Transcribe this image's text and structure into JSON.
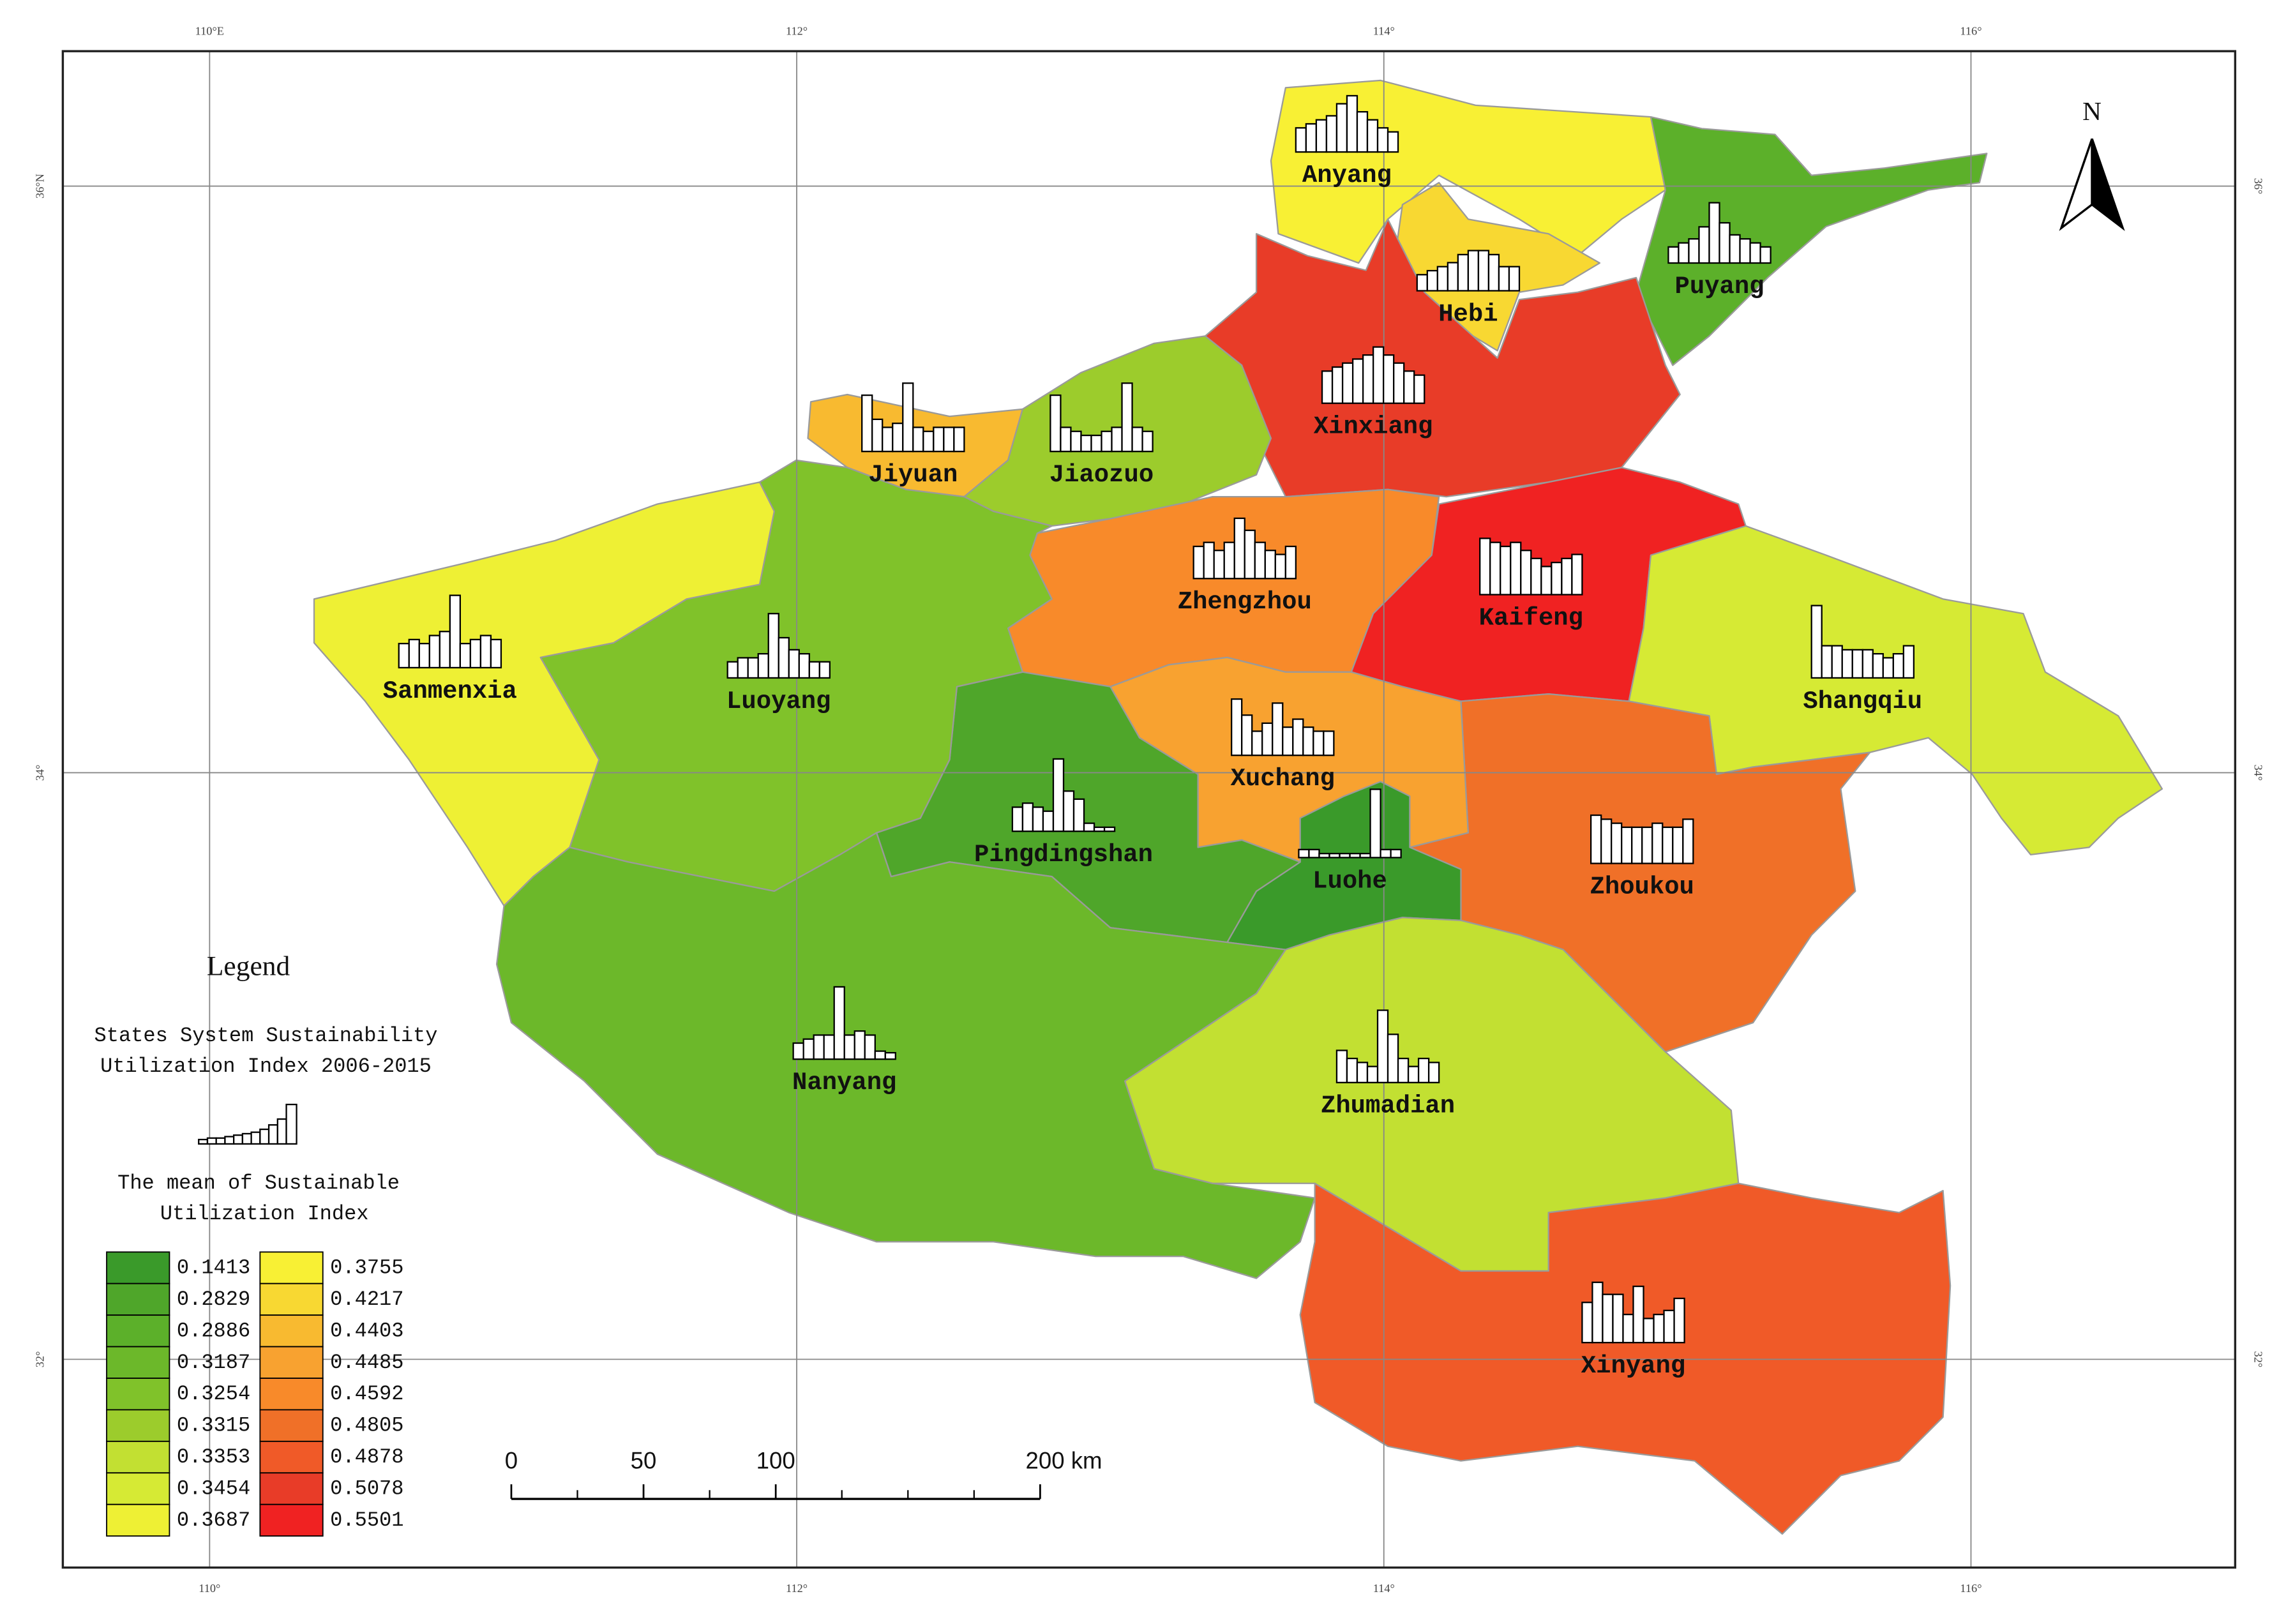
{
  "map": {
    "lonlim": [
      109.5,
      116.9
    ],
    "latlim": [
      31.29,
      36.46
    ],
    "lon_top": [
      {
        "value": 110,
        "label": "110°E"
      },
      {
        "value": 112,
        "label": "112°"
      },
      {
        "value": 114,
        "label": "114°"
      },
      {
        "value": 116,
        "label": "116°"
      }
    ],
    "lon_bottom": [
      {
        "value": 110,
        "label": "110°"
      },
      {
        "value": 112,
        "label": "112°"
      },
      {
        "value": 114,
        "label": "114°"
      },
      {
        "value": 116,
        "label": "116°"
      }
    ],
    "lat_left": [
      {
        "value": 36,
        "label": "36°N"
      },
      {
        "value": 34,
        "label": "34°"
      },
      {
        "value": 32,
        "label": "32°"
      }
    ],
    "lat_right": [
      {
        "value": 36,
        "label": "36°"
      },
      {
        "value": 34,
        "label": "34°"
      },
      {
        "value": 32,
        "label": "32°"
      }
    ],
    "north": "N",
    "cities": [
      {
        "name": "Anyang",
        "value": 0.3755,
        "bars": [
          0.3,
          0.35,
          0.4,
          0.45,
          0.6,
          0.7,
          0.5,
          0.4,
          0.3,
          0.25
        ]
      },
      {
        "name": "Hebi",
        "value": 0.4217,
        "bars": [
          0.2,
          0.25,
          0.3,
          0.35,
          0.45,
          0.5,
          0.5,
          0.45,
          0.3,
          0.3
        ]
      },
      {
        "name": "Puyang",
        "value": 0.2886,
        "bars": [
          0.2,
          0.25,
          0.3,
          0.45,
          0.75,
          0.5,
          0.35,
          0.3,
          0.25,
          0.2
        ]
      },
      {
        "name": "Xinxiang",
        "value": 0.5078,
        "bars": [
          0.4,
          0.45,
          0.5,
          0.55,
          0.6,
          0.7,
          0.6,
          0.5,
          0.4,
          0.35
        ]
      },
      {
        "name": "Jiyuan",
        "value": 0.4403,
        "bars": [
          0.7,
          0.4,
          0.3,
          0.35,
          0.85,
          0.3,
          0.25,
          0.3,
          0.3,
          0.3
        ]
      },
      {
        "name": "Jiaozuo",
        "value": 0.3315,
        "bars": [
          0.7,
          0.3,
          0.25,
          0.2,
          0.2,
          0.25,
          0.3,
          0.85,
          0.3,
          0.25
        ]
      },
      {
        "name": "Zhengzhou",
        "value": 0.4592,
        "bars": [
          0.4,
          0.45,
          0.35,
          0.45,
          0.75,
          0.6,
          0.45,
          0.35,
          0.3,
          0.4
        ]
      },
      {
        "name": "Kaifeng",
        "value": 0.5501,
        "bars": [
          0.7,
          0.65,
          0.6,
          0.65,
          0.55,
          0.45,
          0.35,
          0.4,
          0.45,
          0.5
        ]
      },
      {
        "name": "Shangqiu",
        "value": 0.3454,
        "bars": [
          0.9,
          0.4,
          0.4,
          0.35,
          0.35,
          0.35,
          0.3,
          0.25,
          0.3,
          0.4
        ]
      },
      {
        "name": "Zhoukou",
        "value": 0.4805,
        "bars": [
          0.6,
          0.55,
          0.5,
          0.45,
          0.45,
          0.45,
          0.5,
          0.45,
          0.45,
          0.55
        ]
      },
      {
        "name": "Xuchang",
        "value": 0.4485,
        "bars": [
          0.7,
          0.5,
          0.3,
          0.4,
          0.65,
          0.35,
          0.45,
          0.35,
          0.3,
          0.3
        ]
      },
      {
        "name": "Luohe",
        "value": 0.1413,
        "bars": [
          0.1,
          0.1,
          0.05,
          0.05,
          0.05,
          0.05,
          0.05,
          0.85,
          0.1,
          0.1
        ]
      },
      {
        "name": "Pingdingshan",
        "value": 0.2829,
        "bars": [
          0.3,
          0.35,
          0.3,
          0.25,
          0.9,
          0.5,
          0.4,
          0.1,
          0.05,
          0.05
        ]
      },
      {
        "name": "Luoyang",
        "value": 0.3254,
        "bars": [
          0.2,
          0.25,
          0.25,
          0.3,
          0.8,
          0.5,
          0.35,
          0.3,
          0.2,
          0.2
        ]
      },
      {
        "name": "Sanmenxia",
        "value": 0.3687,
        "bars": [
          0.3,
          0.35,
          0.3,
          0.4,
          0.45,
          0.9,
          0.3,
          0.35,
          0.4,
          0.35
        ]
      },
      {
        "name": "Nanyang",
        "value": 0.3187,
        "bars": [
          0.2,
          0.25,
          0.3,
          0.3,
          0.9,
          0.3,
          0.35,
          0.3,
          0.1,
          0.08
        ]
      },
      {
        "name": "Zhumadian",
        "value": 0.3353,
        "bars": [
          0.4,
          0.3,
          0.25,
          0.2,
          0.9,
          0.6,
          0.3,
          0.2,
          0.3,
          0.25
        ]
      },
      {
        "name": "Xinyang",
        "value": 0.4878,
        "bars": [
          0.5,
          0.75,
          0.6,
          0.6,
          0.35,
          0.7,
          0.3,
          0.35,
          0.4,
          0.55
        ]
      }
    ],
    "legend": {
      "title": "Legend",
      "chart_title": [
        "States System Sustainability",
        "Utilization Index 2006-2015"
      ],
      "mean_title": [
        "The mean of Sustainable",
        "Utilization Index"
      ],
      "classes": [
        {
          "value": 0.1413,
          "color": "#3a9a2a"
        },
        {
          "value": 0.2829,
          "color": "#4fa62a"
        },
        {
          "value": 0.2886,
          "color": "#5cb02a"
        },
        {
          "value": 0.3187,
          "color": "#6cb82a"
        },
        {
          "value": 0.3254,
          "color": "#80c22a"
        },
        {
          "value": 0.3315,
          "color": "#9ccc2c"
        },
        {
          "value": 0.3353,
          "color": "#c2e032"
        },
        {
          "value": 0.3454,
          "color": "#d6ea34"
        },
        {
          "value": 0.3687,
          "color": "#eef034"
        },
        {
          "value": 0.3755,
          "color": "#f8f034"
        },
        {
          "value": 0.4217,
          "color": "#f8d832"
        },
        {
          "value": 0.4403,
          "color": "#f8ba30"
        },
        {
          "value": 0.4485,
          "color": "#f8a230"
        },
        {
          "value": 0.4592,
          "color": "#f88a2a"
        },
        {
          "value": 0.4805,
          "color": "#f07028"
        },
        {
          "value": 0.4878,
          "color": "#f05a28"
        },
        {
          "value": 0.5078,
          "color": "#e83c28"
        },
        {
          "value": 0.5501,
          "color": "#f02222"
        }
      ]
    },
    "scale_ticks": [
      0,
      50,
      100,
      {
        "value": 200,
        "label": "200 km"
      }
    ]
  }
}
